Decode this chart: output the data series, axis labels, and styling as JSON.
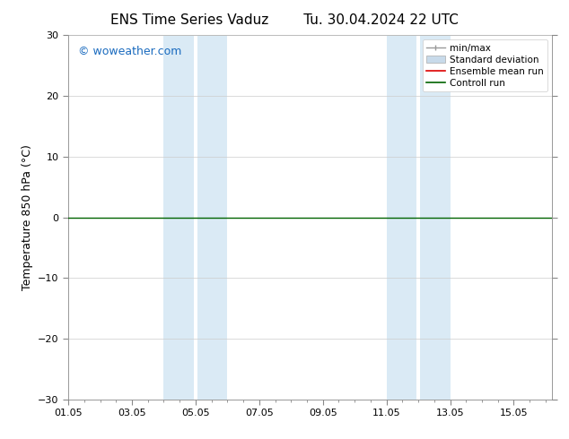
{
  "title_left": "ENS Time Series Vaduz",
  "title_right": "Tu. 30.04.2024 22 UTC",
  "ylabel": "Temperature 850 hPa (°C)",
  "ylim": [
    -30,
    30
  ],
  "yticks": [
    -30,
    -20,
    -10,
    0,
    10,
    20,
    30
  ],
  "xtick_labels": [
    "01.05",
    "03.05",
    "05.05",
    "07.05",
    "09.05",
    "11.05",
    "13.05",
    "15.05"
  ],
  "xtick_positions": [
    0,
    2,
    4,
    6,
    8,
    10,
    12,
    14
  ],
  "xlim": [
    0,
    15.2
  ],
  "control_run_value": 0.0,
  "shaded_bands": [
    {
      "xmin": 3.0,
      "xmax": 3.95
    },
    {
      "xmin": 4.05,
      "xmax": 5.0
    },
    {
      "xmin": 10.0,
      "xmax": 10.95
    },
    {
      "xmin": 11.05,
      "xmax": 12.0
    }
  ],
  "shaded_color": "#daeaf5",
  "background_color": "#ffffff",
  "watermark": "© woweather.com",
  "watermark_color": "#1a6bbf",
  "legend_labels": [
    "min/max",
    "Standard deviation",
    "Ensemble mean run",
    "Controll run"
  ],
  "minmax_color": "#999999",
  "stddev_color": "#c8daea",
  "ensemble_mean_color": "#dd0000",
  "control_line_color": "#006400",
  "title_fontsize": 11,
  "axis_fontsize": 9,
  "tick_fontsize": 8,
  "watermark_fontsize": 9,
  "legend_fontsize": 7.5
}
